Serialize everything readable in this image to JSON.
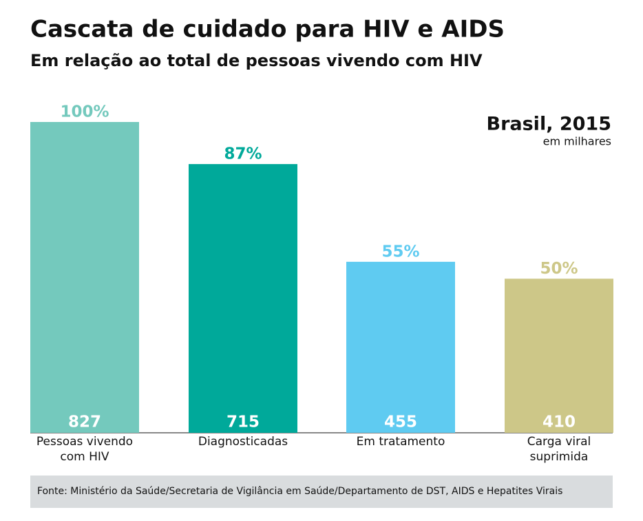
{
  "chart_data": {
    "type": "bar",
    "title": "Cascata de cuidado para HIV e AIDS",
    "subtitle": "Em relação ao total de pessoas vivendo com HIV",
    "annotation": "Brasil, 2015",
    "unit_note": "em milhares",
    "categories": [
      "Pessoas vivendo com HIV",
      "Diagnosticadas",
      "Em tratamento",
      "Carga viral suprimida"
    ],
    "values": [
      827,
      715,
      455,
      410
    ],
    "percent_labels": [
      "100%",
      "87%",
      "55%",
      "50%"
    ],
    "colors": [
      "#74c9bd",
      "#00a99a",
      "#5fcbf1",
      "#cdc788"
    ],
    "ylim": [
      0,
      827
    ],
    "source": "Fonte: Ministério da Saúde/Secretaria de Vigilância em Saúde/Departamento de DST, AIDS e Hepatites Virais"
  }
}
